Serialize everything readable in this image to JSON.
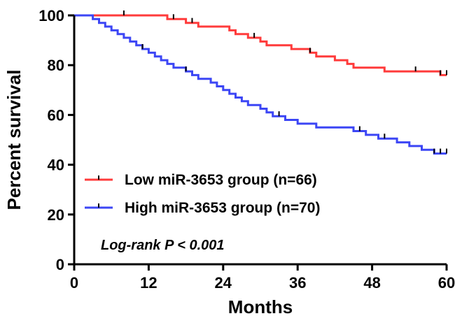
{
  "chart_data": {
    "type": "line",
    "title": "",
    "xlabel": "Months",
    "ylabel": "Percent survival",
    "xlim": [
      0,
      60
    ],
    "ylim": [
      0,
      100
    ],
    "xticks": [
      0,
      12,
      24,
      36,
      48,
      60
    ],
    "yticks": [
      0,
      20,
      40,
      60,
      80,
      100
    ],
    "x_tick_labels": [
      "0",
      "12",
      "24",
      "36",
      "48",
      "60"
    ],
    "y_tick_labels": [
      "0",
      "20",
      "40",
      "60",
      "80",
      "100"
    ],
    "legend_position": "lower-left",
    "annotation": "Log-rank P < 0.001",
    "series": [
      {
        "name": "Low miR-3653 group (n=66)",
        "color": "#ff3b3b",
        "step_points": [
          [
            0,
            100
          ],
          [
            15,
            100
          ],
          [
            15,
            98.5
          ],
          [
            18,
            98.5
          ],
          [
            18,
            97
          ],
          [
            20,
            97
          ],
          [
            20,
            95.5
          ],
          [
            25,
            95.5
          ],
          [
            25,
            94
          ],
          [
            26,
            94
          ],
          [
            26,
            92.5
          ],
          [
            28,
            92.5
          ],
          [
            28,
            91
          ],
          [
            30,
            91
          ],
          [
            30,
            89.5
          ],
          [
            31,
            89.5
          ],
          [
            31,
            88
          ],
          [
            35,
            88
          ],
          [
            35,
            86.5
          ],
          [
            38,
            86.5
          ],
          [
            38,
            85
          ],
          [
            39,
            85
          ],
          [
            39,
            83.5
          ],
          [
            42,
            83.5
          ],
          [
            42,
            82
          ],
          [
            44,
            82
          ],
          [
            44,
            80.5
          ],
          [
            45,
            80.5
          ],
          [
            45,
            79
          ],
          [
            50,
            79
          ],
          [
            50,
            77.5
          ],
          [
            59,
            77.5
          ],
          [
            59,
            76
          ],
          [
            60,
            76
          ]
        ],
        "censor_x": [
          8,
          16,
          19,
          29,
          38,
          55,
          59,
          60
        ]
      },
      {
        "name": "High miR-3653 group (n=70)",
        "color": "#3c46f5",
        "step_points": [
          [
            0,
            100
          ],
          [
            3,
            100
          ],
          [
            3,
            98.5
          ],
          [
            4,
            98.5
          ],
          [
            4,
            97
          ],
          [
            5,
            97
          ],
          [
            5,
            95.5
          ],
          [
            6,
            95.5
          ],
          [
            6,
            94
          ],
          [
            7,
            94
          ],
          [
            7,
            92.5
          ],
          [
            8,
            92.5
          ],
          [
            8,
            91
          ],
          [
            9,
            91
          ],
          [
            9,
            89.5
          ],
          [
            10,
            89.5
          ],
          [
            10,
            88
          ],
          [
            11,
            88
          ],
          [
            11,
            86.5
          ],
          [
            12,
            86.5
          ],
          [
            12,
            85
          ],
          [
            13,
            85
          ],
          [
            13,
            83.5
          ],
          [
            14,
            83.5
          ],
          [
            14,
            82
          ],
          [
            15,
            82
          ],
          [
            15,
            80.5
          ],
          [
            16,
            80.5
          ],
          [
            16,
            79
          ],
          [
            18,
            79
          ],
          [
            18,
            77.5
          ],
          [
            19,
            77.5
          ],
          [
            19,
            76
          ],
          [
            20,
            76
          ],
          [
            20,
            74.5
          ],
          [
            22,
            74.5
          ],
          [
            22,
            73
          ],
          [
            23,
            73
          ],
          [
            23,
            71.5
          ],
          [
            24,
            71.5
          ],
          [
            24,
            70
          ],
          [
            25,
            70
          ],
          [
            25,
            68.5
          ],
          [
            26,
            68.5
          ],
          [
            26,
            67
          ],
          [
            27,
            67
          ],
          [
            27,
            65.5
          ],
          [
            28,
            65.5
          ],
          [
            28,
            64
          ],
          [
            30,
            64
          ],
          [
            30,
            62.5
          ],
          [
            31,
            62.5
          ],
          [
            31,
            61
          ],
          [
            32,
            61
          ],
          [
            32,
            59.5
          ],
          [
            34,
            59.5
          ],
          [
            34,
            58
          ],
          [
            36,
            58
          ],
          [
            36,
            56.5
          ],
          [
            39,
            56.5
          ],
          [
            39,
            55
          ],
          [
            45,
            55
          ],
          [
            45,
            53.5
          ],
          [
            47,
            53.5
          ],
          [
            47,
            52
          ],
          [
            49,
            52
          ],
          [
            49,
            50.5
          ],
          [
            52,
            50.5
          ],
          [
            52,
            49
          ],
          [
            54,
            49
          ],
          [
            54,
            47.5
          ],
          [
            56,
            47.5
          ],
          [
            56,
            46
          ],
          [
            58,
            46
          ],
          [
            58,
            44.5
          ],
          [
            60,
            44.5
          ]
        ],
        "censor_x": [
          11,
          18,
          33,
          46,
          50,
          58,
          59,
          60
        ]
      }
    ]
  }
}
